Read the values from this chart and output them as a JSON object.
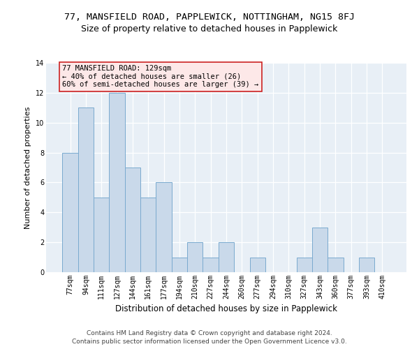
{
  "title": "77, MANSFIELD ROAD, PAPPLEWICK, NOTTINGHAM, NG15 8FJ",
  "subtitle": "Size of property relative to detached houses in Papplewick",
  "xlabel": "Distribution of detached houses by size in Papplewick",
  "ylabel": "Number of detached properties",
  "categories": [
    "77sqm",
    "94sqm",
    "111sqm",
    "127sqm",
    "144sqm",
    "161sqm",
    "177sqm",
    "194sqm",
    "210sqm",
    "227sqm",
    "244sqm",
    "260sqm",
    "277sqm",
    "294sqm",
    "310sqm",
    "327sqm",
    "343sqm",
    "360sqm",
    "377sqm",
    "393sqm",
    "410sqm"
  ],
  "values": [
    8,
    11,
    5,
    12,
    7,
    5,
    6,
    1,
    2,
    1,
    2,
    0,
    1,
    0,
    0,
    1,
    3,
    1,
    0,
    1,
    0
  ],
  "bar_color": "#c9d9ea",
  "bar_edge_color": "#7aaacf",
  "background_color": "#e8eff6",
  "annotation_box_text": "77 MANSFIELD ROAD: 129sqm\n← 40% of detached houses are smaller (26)\n60% of semi-detached houses are larger (39) →",
  "annotation_box_facecolor": "#fde8e8",
  "annotation_box_edgecolor": "#cc2222",
  "ylim": [
    0,
    14
  ],
  "yticks": [
    0,
    2,
    4,
    6,
    8,
    10,
    12,
    14
  ],
  "footer_line1": "Contains HM Land Registry data © Crown copyright and database right 2024.",
  "footer_line2": "Contains public sector information licensed under the Open Government Licence v3.0.",
  "title_fontsize": 9.5,
  "subtitle_fontsize": 9,
  "xlabel_fontsize": 8.5,
  "ylabel_fontsize": 8,
  "tick_fontsize": 7,
  "annotation_fontsize": 7.5,
  "footer_fontsize": 6.5
}
